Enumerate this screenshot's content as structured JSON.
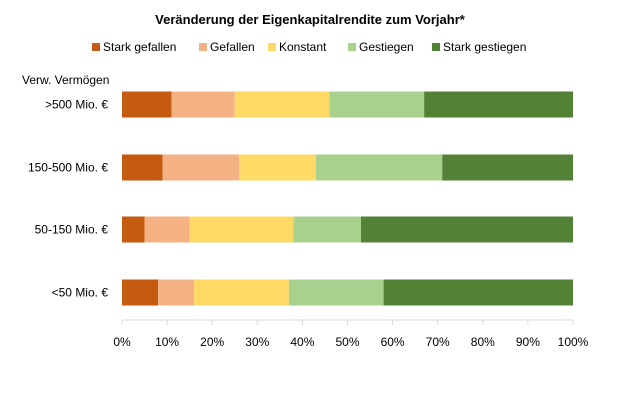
{
  "chart_data": {
    "type": "bar",
    "orientation": "horizontal",
    "stacked": "percent",
    "title": "Veränderung der Eigenkapitalrendite zum Vorjahr*",
    "ylabel": "Verw. Vermögen",
    "xlabel": "",
    "categories": [
      ">500 Mio. €",
      "150-500 Mio. €",
      "50-150 Mio. €",
      "<50 Mio. €"
    ],
    "series": [
      {
        "name": "Stark gefallen",
        "color": "#C55A11",
        "values": [
          11,
          9,
          5,
          8
        ]
      },
      {
        "name": "Gefallen",
        "color": "#F4B183",
        "values": [
          14,
          17,
          10,
          8
        ]
      },
      {
        "name": "Konstant",
        "color": "#FFD966",
        "values": [
          21,
          17,
          23,
          21
        ]
      },
      {
        "name": "Gestiegen",
        "color": "#A9D18E",
        "values": [
          21,
          28,
          15,
          21
        ]
      },
      {
        "name": "Stark gestiegen",
        "color": "#538135",
        "values": [
          33,
          29,
          47,
          42
        ]
      }
    ],
    "xlim": [
      0,
      100
    ],
    "xticks": [
      "0%",
      "10%",
      "20%",
      "30%",
      "40%",
      "50%",
      "60%",
      "70%",
      "80%",
      "90%",
      "100%"
    ],
    "grid": false,
    "legend_position": "top"
  }
}
